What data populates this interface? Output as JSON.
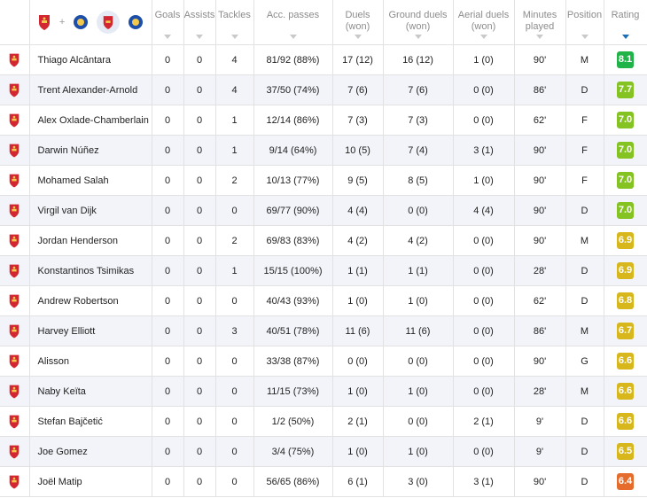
{
  "header": {
    "team_filter_plus": "+",
    "columns": {
      "goals": "Goals",
      "assists": "Assists",
      "tackles": "Tackles",
      "acc_passes": "Acc. passes",
      "duels_a": "Duels",
      "duels_b": "(won)",
      "ground_a": "Ground duels",
      "ground_b": "(won)",
      "aerial_a": "Aerial duels",
      "aerial_b": "(won)",
      "minutes_a": "Minutes",
      "minutes_b": "played",
      "position": "Position",
      "rating": "Rating"
    },
    "sorted_by": "rating"
  },
  "rating_colors": {
    "green_dark": "#20b347",
    "green_lime": "#84c322",
    "yellow": "#d7b71b",
    "orange": "#e59a28",
    "orange_red": "#e66c2d"
  },
  "icons": {
    "team_crest": "liverpool-crest-icon",
    "opponent_crest": "leicester-crest-icon"
  },
  "rows": [
    {
      "name": "Thiago Alcântara",
      "goals": "0",
      "assists": "0",
      "tackles": "4",
      "passes": "81/92 (88%)",
      "duels": "17 (12)",
      "ground": "16 (12)",
      "aerial": "1 (0)",
      "minutes": "90'",
      "position": "M",
      "rating": "8.1",
      "rating_color": "#20b347"
    },
    {
      "name": "Trent Alexander-Arnold",
      "goals": "0",
      "assists": "0",
      "tackles": "4",
      "passes": "37/50 (74%)",
      "duels": "7 (6)",
      "ground": "7 (6)",
      "aerial": "0 (0)",
      "minutes": "86'",
      "position": "D",
      "rating": "7.7",
      "rating_color": "#84c322"
    },
    {
      "name": "Alex Oxlade-Chamberlain",
      "goals": "0",
      "assists": "0",
      "tackles": "1",
      "passes": "12/14 (86%)",
      "duels": "7 (3)",
      "ground": "7 (3)",
      "aerial": "0 (0)",
      "minutes": "62'",
      "position": "F",
      "rating": "7.0",
      "rating_color": "#84c322"
    },
    {
      "name": "Darwin Núñez",
      "goals": "0",
      "assists": "0",
      "tackles": "1",
      "passes": "9/14 (64%)",
      "duels": "10 (5)",
      "ground": "7 (4)",
      "aerial": "3 (1)",
      "minutes": "90'",
      "position": "F",
      "rating": "7.0",
      "rating_color": "#84c322"
    },
    {
      "name": "Mohamed Salah",
      "goals": "0",
      "assists": "0",
      "tackles": "2",
      "passes": "10/13 (77%)",
      "duels": "9 (5)",
      "ground": "8 (5)",
      "aerial": "1 (0)",
      "minutes": "90'",
      "position": "F",
      "rating": "7.0",
      "rating_color": "#84c322"
    },
    {
      "name": "Virgil van Dijk",
      "goals": "0",
      "assists": "0",
      "tackles": "0",
      "passes": "69/77 (90%)",
      "duels": "4 (4)",
      "ground": "0 (0)",
      "aerial": "4 (4)",
      "minutes": "90'",
      "position": "D",
      "rating": "7.0",
      "rating_color": "#84c322"
    },
    {
      "name": "Jordan Henderson",
      "goals": "0",
      "assists": "0",
      "tackles": "2",
      "passes": "69/83 (83%)",
      "duels": "4 (2)",
      "ground": "4 (2)",
      "aerial": "0 (0)",
      "minutes": "90'",
      "position": "M",
      "rating": "6.9",
      "rating_color": "#d7b71b"
    },
    {
      "name": "Konstantinos Tsimikas",
      "goals": "0",
      "assists": "0",
      "tackles": "1",
      "passes": "15/15 (100%)",
      "duels": "1 (1)",
      "ground": "1 (1)",
      "aerial": "0 (0)",
      "minutes": "28'",
      "position": "D",
      "rating": "6.9",
      "rating_color": "#d7b71b"
    },
    {
      "name": "Andrew Robertson",
      "goals": "0",
      "assists": "0",
      "tackles": "0",
      "passes": "40/43 (93%)",
      "duels": "1 (0)",
      "ground": "1 (0)",
      "aerial": "0 (0)",
      "minutes": "62'",
      "position": "D",
      "rating": "6.8",
      "rating_color": "#d7b71b"
    },
    {
      "name": "Harvey Elliott",
      "goals": "0",
      "assists": "0",
      "tackles": "3",
      "passes": "40/51 (78%)",
      "duels": "11 (6)",
      "ground": "11 (6)",
      "aerial": "0 (0)",
      "minutes": "86'",
      "position": "M",
      "rating": "6.7",
      "rating_color": "#d7b71b"
    },
    {
      "name": "Alisson",
      "goals": "0",
      "assists": "0",
      "tackles": "0",
      "passes": "33/38 (87%)",
      "duels": "0 (0)",
      "ground": "0 (0)",
      "aerial": "0 (0)",
      "minutes": "90'",
      "position": "G",
      "rating": "6.6",
      "rating_color": "#d7b71b"
    },
    {
      "name": "Naby Keïta",
      "goals": "0",
      "assists": "0",
      "tackles": "0",
      "passes": "11/15 (73%)",
      "duels": "1 (0)",
      "ground": "1 (0)",
      "aerial": "0 (0)",
      "minutes": "28'",
      "position": "M",
      "rating": "6.6",
      "rating_color": "#d7b71b"
    },
    {
      "name": "Stefan Bajčetić",
      "goals": "0",
      "assists": "0",
      "tackles": "0",
      "passes": "1/2 (50%)",
      "duels": "2 (1)",
      "ground": "0 (0)",
      "aerial": "2 (1)",
      "minutes": "9'",
      "position": "D",
      "rating": "6.6",
      "rating_color": "#d7b71b"
    },
    {
      "name": "Joe Gomez",
      "goals": "0",
      "assists": "0",
      "tackles": "0",
      "passes": "3/4 (75%)",
      "duels": "1 (0)",
      "ground": "1 (0)",
      "aerial": "0 (0)",
      "minutes": "9'",
      "position": "D",
      "rating": "6.5",
      "rating_color": "#d7b71b"
    },
    {
      "name": "Joël Matip",
      "goals": "0",
      "assists": "0",
      "tackles": "0",
      "passes": "56/65 (86%)",
      "duels": "6 (1)",
      "ground": "3 (0)",
      "aerial": "3 (1)",
      "minutes": "90'",
      "position": "D",
      "rating": "6.4",
      "rating_color": "#e66c2d"
    }
  ]
}
